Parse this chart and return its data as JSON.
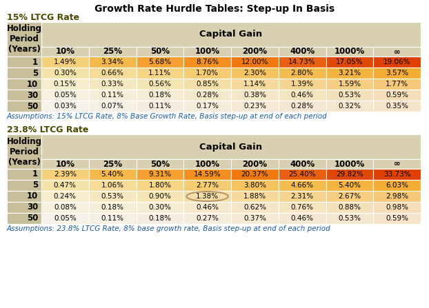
{
  "title": "Growth Rate Hurdle Tables: Step-up In Basis",
  "col_headers": [
    "10%",
    "25%",
    "50%",
    "100%",
    "200%",
    "400%",
    "1000%",
    "∞"
  ],
  "row_headers": [
    "1",
    "5",
    "10",
    "30",
    "50"
  ],
  "table1": {
    "label": "15% LTCG Rate",
    "assumption": "Assumptions: 15% LTCG Rate, 8% Base Growth Rate, Basis step-up at end of each period",
    "data": [
      [
        "1.49%",
        "3.34%",
        "5.68%",
        "8.76%",
        "12.00%",
        "14.73%",
        "17.05%",
        "19.06%"
      ],
      [
        "0.30%",
        "0.66%",
        "1.11%",
        "1.70%",
        "2.30%",
        "2.80%",
        "3.21%",
        "3.57%"
      ],
      [
        "0.15%",
        "0.33%",
        "0.56%",
        "0.85%",
        "1.14%",
        "1.39%",
        "1.59%",
        "1.77%"
      ],
      [
        "0.05%",
        "0.11%",
        "0.18%",
        "0.28%",
        "0.38%",
        "0.46%",
        "0.53%",
        "0.59%"
      ],
      [
        "0.03%",
        "0.07%",
        "0.11%",
        "0.17%",
        "0.23%",
        "0.28%",
        "0.32%",
        "0.35%"
      ]
    ],
    "cell_colors": [
      [
        "#F5CF7A",
        "#F5B84A",
        "#F5A030",
        "#F59020",
        "#F07810",
        "#E86010",
        "#E04808",
        "#E04000"
      ],
      [
        "#F5E4AA",
        "#F5DC98",
        "#F5D585",
        "#F5CC72",
        "#F5C460",
        "#F5BC50",
        "#F5B440",
        "#F5AC35"
      ],
      [
        "#F5EDCC",
        "#F5E8C0",
        "#F5E4B4",
        "#F5DFA8",
        "#F5DA9C",
        "#F5D490",
        "#F5CE84",
        "#F5C878"
      ],
      [
        "#F5F0E0",
        "#F5EED8",
        "#F5ECD4",
        "#F5E9CC",
        "#F5E6C8",
        "#F5E4C0",
        "#F5E0BC",
        "#F5DEB8"
      ],
      [
        "#F5F2E8",
        "#F5F0E4",
        "#F5EEE0",
        "#F5ECDC",
        "#F5EAD6",
        "#F5E8D2",
        "#F5E6CE",
        "#F5E4CA"
      ]
    ]
  },
  "table2": {
    "label": "23.8% LTCG Rate",
    "assumption": "Assumptions: 23.8% LTCG Rate, 8% base growth rate, Basis step-up at end of each period",
    "data": [
      [
        "2.39%",
        "5.40%",
        "9.31%",
        "14.59%",
        "20.37%",
        "25.40%",
        "29.82%",
        "33.73%"
      ],
      [
        "0.47%",
        "1.06%",
        "1.80%",
        "2.77%",
        "3.80%",
        "4.66%",
        "5.40%",
        "6.03%"
      ],
      [
        "0.24%",
        "0.53%",
        "0.90%",
        "1.38%",
        "1.88%",
        "2.31%",
        "2.67%",
        "2.98%"
      ],
      [
        "0.08%",
        "0.18%",
        "0.30%",
        "0.46%",
        "0.62%",
        "0.76%",
        "0.88%",
        "0.98%"
      ],
      [
        "0.05%",
        "0.11%",
        "0.18%",
        "0.27%",
        "0.37%",
        "0.46%",
        "0.53%",
        "0.59%"
      ]
    ],
    "cell_colors": [
      [
        "#F5CF7A",
        "#F5B84A",
        "#F5A030",
        "#F59020",
        "#F07810",
        "#E86010",
        "#E04808",
        "#E04000"
      ],
      [
        "#F5E4AA",
        "#F5DC98",
        "#F5D585",
        "#F5CC72",
        "#F5C460",
        "#F5BC50",
        "#F5B440",
        "#F5AC35"
      ],
      [
        "#F5EDCC",
        "#F5E8C0",
        "#F5E4B4",
        "#F5DFA8",
        "#F5DA9C",
        "#F5D490",
        "#F5CE84",
        "#F5C878"
      ],
      [
        "#F5F0E0",
        "#F5EED8",
        "#F5ECD4",
        "#F5E9CC",
        "#F5E6C8",
        "#F5E4C0",
        "#F5E0BC",
        "#F5DEB8"
      ],
      [
        "#F5F2E8",
        "#F5F0E4",
        "#F5EEE0",
        "#F5ECDC",
        "#F5EAD6",
        "#F5E8D2",
        "#F5E6CE",
        "#F5E4CA"
      ]
    ],
    "highlight_cell": [
      2,
      3
    ]
  },
  "header_bg": "#C8BF9A",
  "row_header_bg": "#C8BF9A",
  "capital_gain_bg": "#D8D0B0",
  "col_header_bg": "#D8D0B0",
  "bg_color": "#FFFFFF",
  "label_color": "#4A4A00",
  "assumption_color": "#1A5AA0",
  "title_color": "#000000",
  "title_fontsize": 10,
  "label_fontsize": 9,
  "assumption_fontsize": 7.5,
  "cell_fontsize": 7.5,
  "header_fontsize": 8.5
}
